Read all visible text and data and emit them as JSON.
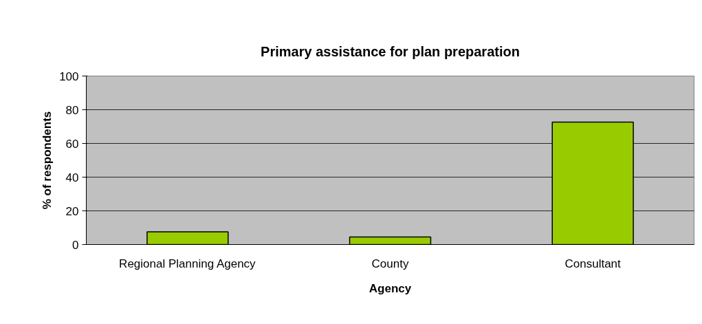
{
  "chart_data": {
    "type": "bar",
    "title": "Primary assistance for plan preparation",
    "xlabel": "Agency",
    "ylabel": "% of respondents",
    "categories": [
      "Regional Planning Agency",
      "County",
      "Consultant"
    ],
    "series": [
      {
        "color": "#99cc00",
        "values": [
          7.6,
          4.5,
          72.7
        ]
      }
    ],
    "ylim": [
      0,
      100
    ],
    "yticks": [
      0,
      20,
      40,
      60,
      80,
      100
    ],
    "grid": "y"
  }
}
